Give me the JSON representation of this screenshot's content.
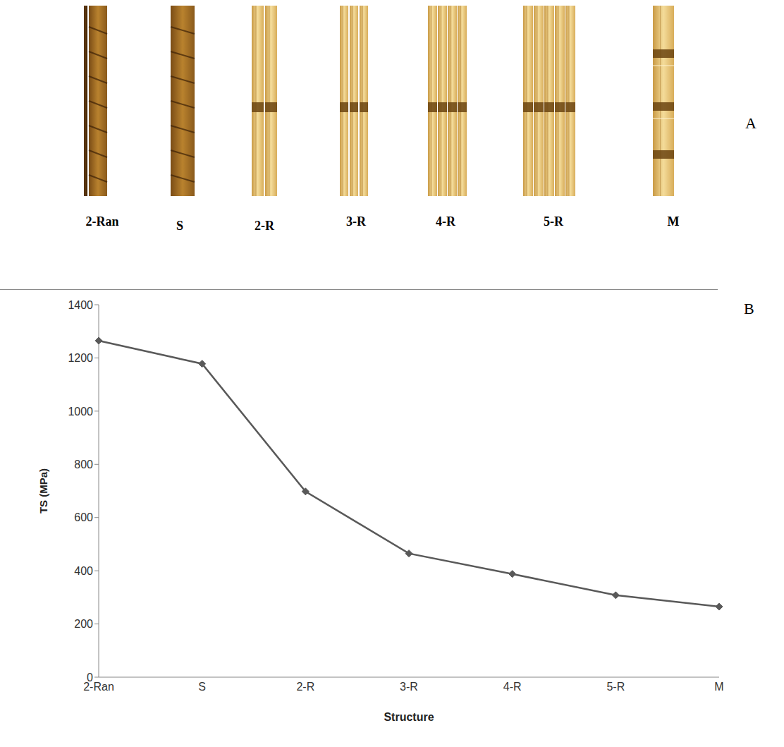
{
  "panel_letters": [
    "A",
    "B"
  ],
  "image_labels": [
    "2-Ran",
    "S",
    "2-R",
    "3-R",
    "4-R",
    "5-R",
    "M"
  ],
  "chart_data": {
    "type": "line",
    "categories": [
      "2-Ran",
      "S",
      "2-R",
      "3-R",
      "4-R",
      "5-R",
      "M"
    ],
    "values": [
      1265,
      1178,
      698,
      465,
      388,
      308,
      265
    ],
    "color": "#595959",
    "marker": "diamond",
    "ylim": [
      0,
      1400
    ],
    "yticks": [
      0,
      200,
      400,
      600,
      800,
      1000,
      1200,
      1400
    ],
    "xlabel": "Structure",
    "ylabel": "TS (MPa)",
    "grid": false
  }
}
